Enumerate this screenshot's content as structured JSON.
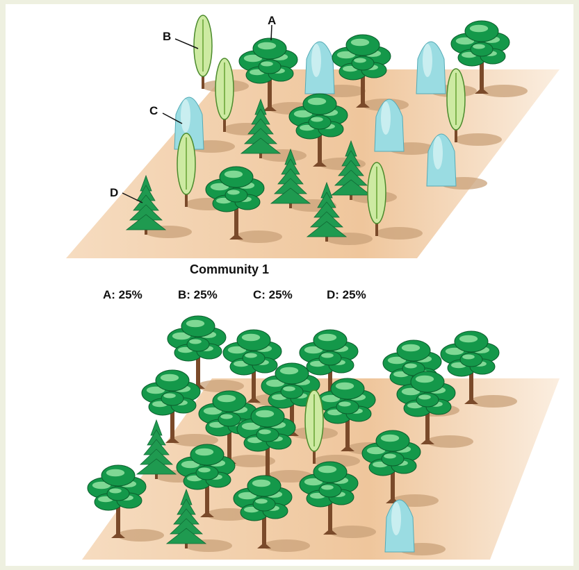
{
  "community_1": {
    "title": "Community 1",
    "species_labels": [
      "A",
      "B",
      "C",
      "D"
    ],
    "composition": [
      "A: 25%",
      "B: 25%",
      "C: 25%",
      "D: 25%"
    ]
  }
}
